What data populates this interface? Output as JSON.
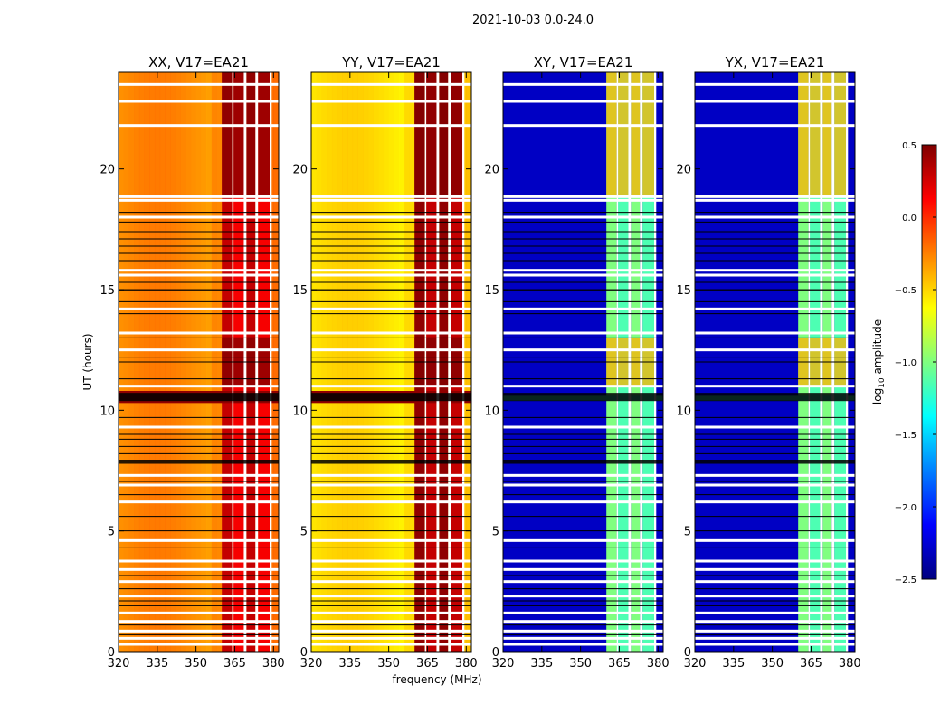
{
  "suptitle": "2021-10-03 0.0-24.0",
  "chart_data": {
    "type": "heatmap",
    "xlabel": "frequency (MHz)",
    "ylabel": "UT (hours)",
    "xlim": [
      320,
      382
    ],
    "ylim": [
      0,
      24
    ],
    "xticks": [
      320,
      335,
      350,
      365,
      380
    ],
    "yticks": [
      0,
      5,
      10,
      15,
      20
    ],
    "colormap": "jet",
    "colorbar": {
      "label_prefix": "log",
      "label_sub": "10",
      "label_suffix": " amplitude",
      "range": [
        -2.5,
        0.5
      ],
      "ticks": [
        {
          "value": 0.5,
          "label": "0.5"
        },
        {
          "value": 0.0,
          "label": "0.0"
        },
        {
          "value": -0.5,
          "label": "−0.5"
        },
        {
          "value": -1.0,
          "label": "−1.0"
        },
        {
          "value": -1.5,
          "label": "−1.5"
        },
        {
          "value": -2.0,
          "label": "−2.0"
        },
        {
          "value": -2.5,
          "label": "−2.5"
        }
      ]
    },
    "rfi_bands_mhz": [
      [
        360,
        364
      ],
      [
        364.5,
        368.5
      ],
      [
        369.5,
        373
      ],
      [
        374,
        378.5
      ]
    ],
    "flagged_bands_mhz": [
      [
        364,
        364.5
      ],
      [
        368.5,
        369.5
      ],
      [
        373,
        374
      ],
      [
        378.5,
        379.3
      ]
    ],
    "flagged_gaps_ut_hours": [
      0.3,
      0.55,
      0.85,
      1.25,
      1.6,
      2.3,
      2.9,
      3.4,
      3.75,
      4.6,
      6.2,
      6.9,
      7.3,
      9.3,
      11.0,
      12.5,
      13.2,
      14.2,
      15.6,
      15.8,
      18.0,
      18.7,
      18.85,
      21.8,
      22.8,
      23.5
    ],
    "flagged_lines_ut_hours": [
      0.7,
      1.1,
      1.9,
      2.1,
      2.6,
      3.15,
      4.3,
      5.0,
      5.6,
      6.5,
      7.05,
      8.2,
      8.5,
      8.8,
      9.0,
      9.7,
      11.3,
      12.0,
      12.2,
      13.0,
      14.0,
      14.5,
      15.3,
      16.2,
      16.5,
      16.8,
      17.1,
      17.4,
      17.8,
      18.2
    ],
    "flagged_thick_ut_hours": [
      [
        7.78,
        7.95
      ],
      [
        10.38,
        10.72
      ],
      [
        14.95,
        15.02
      ]
    ],
    "series": [
      {
        "name": "XX, V17=EA21",
        "base_log_amp": -0.3,
        "rfi_log_amp": 0.3,
        "bright_ut_hours": [
          10.3,
          10.8
        ]
      },
      {
        "name": "YY, V17=EA21",
        "base_log_amp": -0.55,
        "rfi_log_amp": 0.45,
        "bright_ut_hours": [
          10.3,
          10.8
        ]
      },
      {
        "name": "XY, V17=EA21",
        "base_log_amp": -2.3,
        "rfi_log_amp": -1.0,
        "bright_ut_hours": [
          10.4,
          10.6
        ]
      },
      {
        "name": "YX, V17=EA21",
        "base_log_amp": -2.3,
        "rfi_log_amp": -1.0,
        "bright_ut_hours": [
          10.4,
          10.6
        ]
      }
    ]
  }
}
